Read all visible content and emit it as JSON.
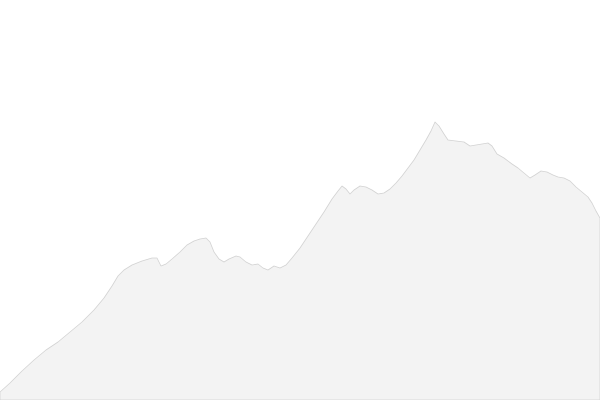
{
  "scene": {
    "background_color": "#ffffff",
    "mountain_fill": "#f3f3f3",
    "mountain_outline": "#d2d2d2"
  }
}
